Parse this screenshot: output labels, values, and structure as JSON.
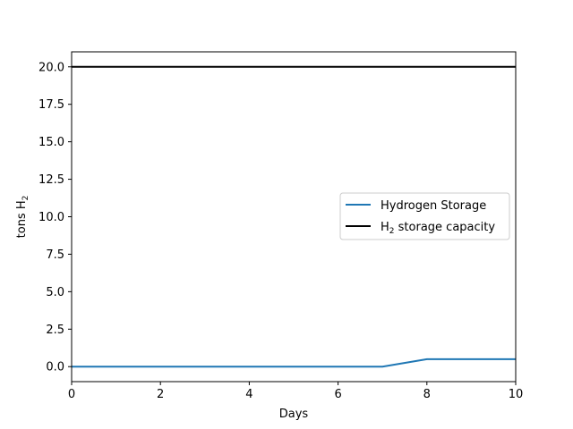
{
  "chart_data": {
    "type": "line",
    "title": "",
    "xlabel": "Days",
    "ylabel": {
      "main": "tons H",
      "sub": "2"
    },
    "xlim": [
      0,
      10
    ],
    "ylim": [
      -1,
      21
    ],
    "xticks": [
      0,
      2,
      4,
      6,
      8,
      10
    ],
    "xtick_labels": [
      "0",
      "2",
      "4",
      "6",
      "8",
      "10"
    ],
    "yticks": [
      0,
      2.5,
      5,
      7.5,
      10,
      12.5,
      15,
      17.5,
      20
    ],
    "ytick_labels": [
      "0.0",
      "2.5",
      "5.0",
      "7.5",
      "10.0",
      "12.5",
      "15.0",
      "17.5",
      "20.0"
    ],
    "grid": false,
    "legend_position": "center-right",
    "series": [
      {
        "name": "Hydrogen Storage",
        "color": "#1f77b4",
        "x": [
          0,
          1,
          2,
          3,
          4,
          5,
          6,
          7,
          8,
          9,
          10
        ],
        "y": [
          0,
          0,
          0,
          0,
          0,
          0,
          0,
          0,
          0.5,
          0.5,
          0.5
        ]
      },
      {
        "name_parts": {
          "pre": "H",
          "sub": "2",
          "post": " storage capacity"
        },
        "color": "#000000",
        "x": [
          0,
          10
        ],
        "y": [
          20,
          20
        ]
      }
    ]
  }
}
